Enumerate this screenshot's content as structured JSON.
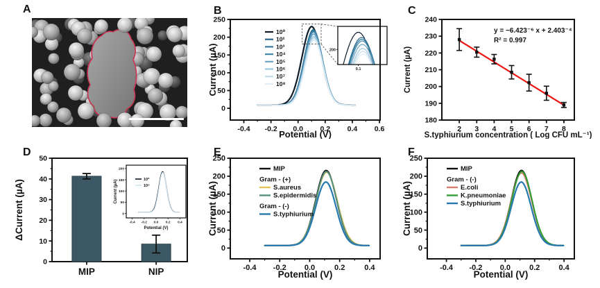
{
  "panels": {
    "a": {
      "label": "A",
      "content": "SEM image of spherical nanoparticles with one rod-shaped bacterium outlined",
      "outline_color": "#cc3350",
      "scale_bar": "white bar, bottom right"
    },
    "b": {
      "label": "B"
    },
    "c": {
      "label": "C"
    },
    "d": {
      "label": "D"
    },
    "e": {
      "label": "E"
    },
    "f": {
      "label": "F"
    }
  },
  "chart_data": [
    {
      "id": "B",
      "type": "line",
      "xlabel": "Potential (V)",
      "ylabel": "Current (µA)",
      "xlim": [
        -0.5,
        0.605
      ],
      "ylim": [
        -33,
        250
      ],
      "xticks": [
        "-0.4",
        "-0.2",
        "0.0",
        "0.2",
        "0.4",
        "0.6"
      ],
      "yticks": [
        "0",
        "50",
        "100",
        "150",
        "200",
        "250"
      ],
      "x_data_range": [
        -0.3,
        0.42
      ],
      "baseline_uA": 9,
      "legend_position": "upper-left",
      "grid": false,
      "series": [
        {
          "name": "10⁰",
          "color": "#0d1b2a",
          "peak_uA": 230,
          "peak_V": 0.1,
          "sigma_V": 0.072,
          "lw": 2.2
        },
        {
          "name": "10²",
          "color": "#28688c",
          "peak_uA": 221,
          "peak_V": 0.112,
          "sigma_V": 0.068,
          "lw": 1.8
        },
        {
          "name": "10³",
          "color": "#33789e",
          "peak_uA": 218,
          "peak_V": 0.113,
          "sigma_V": 0.068,
          "lw": 1.8
        },
        {
          "name": "10⁴",
          "color": "#4389ad",
          "peak_uA": 215,
          "peak_V": 0.114,
          "sigma_V": 0.067,
          "lw": 1.8
        },
        {
          "name": "10⁵",
          "color": "#6ba3c2",
          "peak_uA": 209,
          "peak_V": 0.115,
          "sigma_V": 0.067,
          "lw": 1.8
        },
        {
          "name": "10⁶",
          "color": "#9cc6db",
          "peak_uA": 202,
          "peak_V": 0.116,
          "sigma_V": 0.066,
          "lw": 1.8
        },
        {
          "name": "10⁷",
          "color": "#c2dcea",
          "peak_uA": 197,
          "peak_V": 0.117,
          "sigma_V": 0.066,
          "lw": 1.8
        },
        {
          "name": "10⁸",
          "color": "#dfeef6",
          "peak_uA": 192,
          "peak_V": 0.118,
          "sigma_V": 0.065,
          "lw": 1.8
        }
      ],
      "inset": {
        "yticks": [
          "200"
        ],
        "xticks": [
          "0.1"
        ],
        "window_x": [
          0.025,
          0.205
        ],
        "window_y": [
          174,
          240
        ]
      },
      "zoom_rect": {
        "x": [
          0.03,
          0.17
        ],
        "y": [
          181,
          237
        ]
      }
    },
    {
      "id": "C",
      "type": "scatter",
      "xlabel": "S.typhiurium concentration ( Log CFU mL⁻¹)",
      "ylabel": "Current (µA)",
      "xlim": [
        1.0,
        8.6
      ],
      "ylim": [
        180,
        240
      ],
      "xticks": [
        "2",
        "3",
        "4",
        "5",
        "6",
        "7",
        "8"
      ],
      "yticks": [
        "180",
        "190",
        "200",
        "210",
        "220",
        "230",
        "240"
      ],
      "x": [
        2,
        3,
        4,
        5,
        6,
        7,
        8
      ],
      "y": [
        228,
        220.5,
        216.3,
        208.5,
        202.3,
        196,
        189
      ],
      "yerr": [
        6.5,
        3,
        2.8,
        4,
        5,
        4.2,
        1.5
      ],
      "point_color": "#111111",
      "fit": {
        "color": "#ea1410",
        "slope_uA_per_log": -6.423,
        "intercept_uA": 240.3,
        "x_start": 2,
        "x_end": 8
      },
      "annotation": {
        "equation": "y = −6.423⁻⁶ x + 2.403⁻⁴",
        "r_squared": "R² = 0.997"
      }
    },
    {
      "id": "D",
      "type": "bar",
      "ylabel": "ΔCurrent (µA)",
      "ylim": [
        0,
        50
      ],
      "yticks": [
        "0",
        "10",
        "20",
        "30",
        "40",
        "50"
      ],
      "categories": [
        "MIP",
        "NIP"
      ],
      "values": [
        41.3,
        8.5
      ],
      "errors": [
        1.3,
        4.3
      ],
      "bar_color": "#3d5865",
      "inset": {
        "type": "line",
        "xlabel": "Potential (V)",
        "ylabel": "Current (µA)",
        "xlim": [
          -0.5,
          0.5
        ],
        "ylim": [
          -20,
          215
        ],
        "xticks": [
          "-0.4",
          "-0.2",
          "0.0",
          "0.2",
          "0.4"
        ],
        "yticks": [
          "0",
          "50",
          "100",
          "150",
          "200"
        ],
        "x_data_range": [
          -0.3,
          0.4
        ],
        "baseline_uA": 5,
        "series": [
          {
            "name": "10⁰",
            "color": "#0d1b2a",
            "peak_uA": 186,
            "peak_V": 0.11,
            "sigma_V": 0.066,
            "lw": 1.3
          },
          {
            "name": "10⁸",
            "color": "#cfe4f0",
            "peak_uA": 183,
            "peak_V": 0.112,
            "sigma_V": 0.064,
            "lw": 1.3
          }
        ]
      }
    },
    {
      "id": "E",
      "type": "line",
      "xlabel": "Potential (V)",
      "ylabel": "Current (µA)",
      "xlim": [
        -0.53,
        0.47
      ],
      "ylim": [
        -30,
        250
      ],
      "xticks": [
        "-0.4",
        "-0.2",
        "0.0",
        "0.2",
        "0.4"
      ],
      "yticks": [
        "0",
        "50",
        "100",
        "150",
        "200",
        "250"
      ],
      "x_data_range": [
        -0.3,
        0.4
      ],
      "baseline_uA": 7,
      "legend": [
        {
          "kind": "entry",
          "name": "MIP"
        },
        {
          "kind": "heading",
          "name": "Gram - (+)"
        },
        {
          "kind": "entry",
          "name": "S.aureus"
        },
        {
          "kind": "entry",
          "name": "S.epidermidis"
        },
        {
          "kind": "heading",
          "name": "Gram - (-)"
        },
        {
          "kind": "entry",
          "name": "S.typhiurium"
        }
      ],
      "series": [
        {
          "name": "MIP",
          "color": "#111111",
          "peak_uA": 216,
          "peak_V": 0.11,
          "sigma_V": 0.07,
          "lw": 2.2
        },
        {
          "name": "S.aureus",
          "color": "#e5c35a",
          "peak_uA": 211,
          "peak_V": 0.113,
          "sigma_V": 0.072,
          "lw": 2
        },
        {
          "name": "S.epidermidis",
          "color": "#53907d",
          "peak_uA": 213,
          "peak_V": 0.111,
          "sigma_V": 0.07,
          "lw": 2
        },
        {
          "name": "S.typhiurium",
          "color": "#2679af",
          "peak_uA": 184,
          "peak_V": 0.108,
          "sigma_V": 0.068,
          "lw": 2.2
        }
      ]
    },
    {
      "id": "F",
      "type": "line",
      "xlabel": "Potential (V)",
      "ylabel": "Current (µA)",
      "xlim": [
        -0.53,
        0.47
      ],
      "ylim": [
        -30,
        250
      ],
      "xticks": [
        "-0.4",
        "-0.2",
        "0.0",
        "0.2",
        "0.4"
      ],
      "yticks": [
        "0",
        "50",
        "100",
        "150",
        "200",
        "250"
      ],
      "x_data_range": [
        -0.3,
        0.4
      ],
      "baseline_uA": 7,
      "legend": [
        {
          "kind": "entry",
          "name": "MIP"
        },
        {
          "kind": "heading",
          "name": "Gram - (-)"
        },
        {
          "kind": "entry",
          "name": "E.coli"
        },
        {
          "kind": "entry",
          "name": "K.pneumoniae"
        },
        {
          "kind": "entry",
          "name": "S.typhiurium"
        }
      ],
      "series": [
        {
          "name": "MIP",
          "color": "#111111",
          "peak_uA": 216,
          "peak_V": 0.111,
          "sigma_V": 0.07,
          "lw": 2.2
        },
        {
          "name": "E.coli",
          "color": "#d87f6e",
          "peak_uA": 209,
          "peak_V": 0.11,
          "sigma_V": 0.071,
          "lw": 2
        },
        {
          "name": "K.pneumoniae",
          "color": "#2f9e33",
          "peak_uA": 213,
          "peak_V": 0.113,
          "sigma_V": 0.07,
          "lw": 2
        },
        {
          "name": "S.typhiurium",
          "color": "#2679af",
          "peak_uA": 184,
          "peak_V": 0.109,
          "sigma_V": 0.068,
          "lw": 2.2
        }
      ]
    }
  ]
}
